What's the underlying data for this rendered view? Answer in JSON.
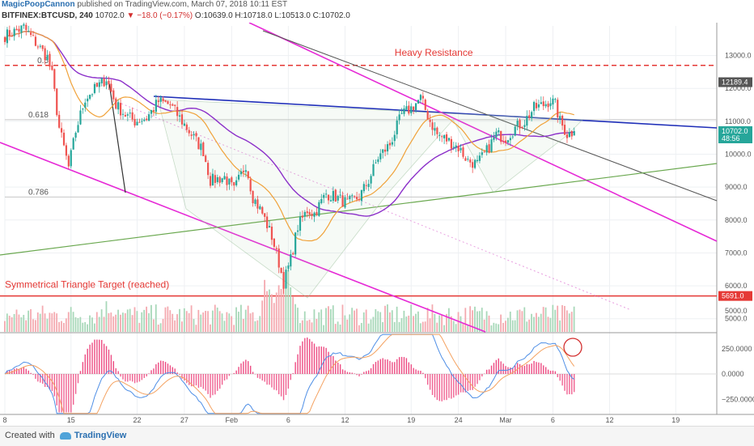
{
  "header": {
    "author": "MagicPoopCannon",
    "published": "published on TradingView.com, March 07, 2018 10:11 EST"
  },
  "ohlc": {
    "symbol": "BITFINEX:BTCUSD, 240",
    "last": "10702.0",
    "change": "−18.0 (−0.17%)",
    "open": "O:10639.0",
    "high": "H:10718.0",
    "low": "L:10513.0",
    "close": "C:10702.0"
  },
  "footer": {
    "created_with": "Created with",
    "brand": "TradingView"
  },
  "colors": {
    "candle_up": "#26a69a",
    "candle_down": "#ef5350",
    "trend_blue": "#1f2fb8",
    "magenta": "#e62ad6",
    "purple_ma": "#8b2fc9",
    "orange_ma": "#f0a23a",
    "green_line": "#6aa84f",
    "gray_line": "#555555",
    "resistance": "#e53935"
  },
  "chart_data": {
    "type": "candlestick",
    "price_axis": {
      "ylim": [
        4600,
        13900
      ],
      "ticks": [
        5000,
        6000,
        7000,
        8000,
        9000,
        10000,
        11000,
        12000,
        13000
      ],
      "tick_labels": [
        "5000.0",
        "6000.0",
        "7000.0",
        "8000.0",
        "9000.0",
        "10000.0",
        "11000.0",
        "12000.0",
        "13000.0"
      ]
    },
    "x_axis": {
      "tick_labels": [
        "8",
        "15",
        "22",
        "27",
        "Feb",
        "6",
        "12",
        "19",
        "24",
        "Mar",
        "6",
        "12",
        "19"
      ],
      "tick_index": [
        0,
        28,
        56,
        76,
        96,
        120,
        144,
        172,
        192,
        212,
        232,
        256,
        284
      ],
      "bar_count": 300,
      "candles_shown": 242
    },
    "price_markers": [
      {
        "label": "12189.4",
        "value": 12189.4,
        "kind": "gray"
      },
      {
        "label": "10702.0",
        "value": 10702.0,
        "kind": "green"
      },
      {
        "label": "48:56",
        "value": 10480,
        "kind": "green"
      },
      {
        "label": "5691.0",
        "value": 5691.0,
        "kind": "red"
      }
    ],
    "fib_levels": [
      {
        "label": "0.5",
        "value": 12700
      },
      {
        "label": "0.618",
        "value": 11050
      },
      {
        "label": "0.786",
        "value": 8700
      }
    ],
    "annotations": [
      {
        "text": "Heavy Resistance",
        "value": 12700,
        "bar": 165
      },
      {
        "text": "Symmetrical Triangle Target (reached)",
        "value": 5691,
        "bar": 1
      }
    ],
    "price_anchors": [
      [
        0,
        13600
      ],
      [
        8,
        13850
      ],
      [
        14,
        13300
      ],
      [
        18,
        12950
      ],
      [
        20,
        12400
      ],
      [
        23,
        10800
      ],
      [
        27,
        9600
      ],
      [
        30,
        10700
      ],
      [
        34,
        11700
      ],
      [
        40,
        12100
      ],
      [
        43,
        12300
      ],
      [
        47,
        11500
      ],
      [
        51,
        11200
      ],
      [
        55,
        11000
      ],
      [
        60,
        11100
      ],
      [
        65,
        11600
      ],
      [
        70,
        11500
      ],
      [
        74,
        11100
      ],
      [
        79,
        10600
      ],
      [
        84,
        10100
      ],
      [
        87,
        9200
      ],
      [
        93,
        9300
      ],
      [
        97,
        8900
      ],
      [
        102,
        9700
      ],
      [
        105,
        8700
      ],
      [
        109,
        8200
      ],
      [
        113,
        7500
      ],
      [
        116,
        6700
      ],
      [
        118,
        6100
      ],
      [
        121,
        6800
      ],
      [
        124,
        7800
      ],
      [
        128,
        8300
      ],
      [
        131,
        8200
      ],
      [
        136,
        8800
      ],
      [
        140,
        8700
      ],
      [
        145,
        8500
      ],
      [
        150,
        8700
      ],
      [
        154,
        9200
      ],
      [
        158,
        9900
      ],
      [
        163,
        10300
      ],
      [
        168,
        11200
      ],
      [
        172,
        11400
      ],
      [
        176,
        11700
      ],
      [
        180,
        11000
      ],
      [
        183,
        10600
      ],
      [
        188,
        10400
      ],
      [
        192,
        10200
      ],
      [
        196,
        9800
      ],
      [
        200,
        9700
      ],
      [
        204,
        10100
      ],
      [
        208,
        10600
      ],
      [
        212,
        10500
      ],
      [
        216,
        10800
      ],
      [
        220,
        11000
      ],
      [
        224,
        11400
      ],
      [
        228,
        11500
      ],
      [
        231,
        11650
      ],
      [
        233,
        11500
      ],
      [
        235,
        11000
      ],
      [
        238,
        10600
      ],
      [
        241,
        10702
      ]
    ],
    "volume_panel": {
      "ticks": [
        5000
      ],
      "tick_labels": [
        "5000.0"
      ]
    },
    "macd_panel": {
      "ylim": [
        -400,
        400
      ],
      "ticks": [
        250,
        0,
        -250
      ],
      "tick_labels": [
        "250.0000",
        "0.0000",
        "−250.0000"
      ]
    }
  }
}
